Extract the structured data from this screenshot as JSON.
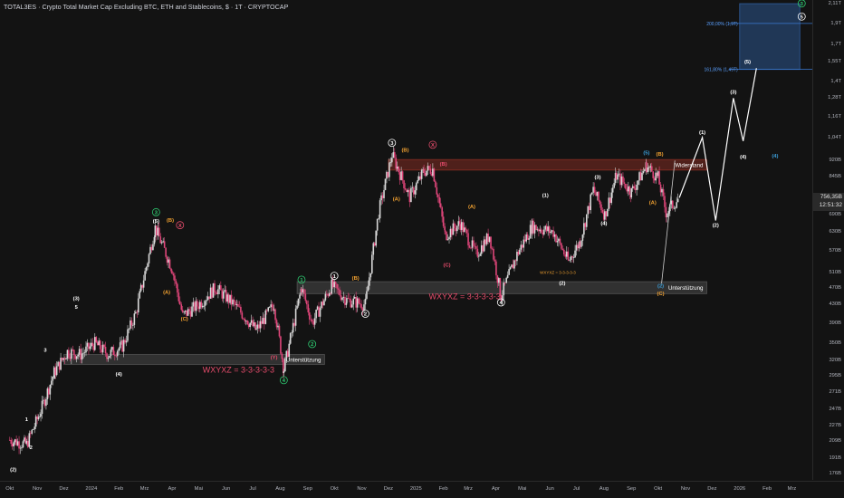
{
  "header": {
    "title": "TOTAL3ES · Crypto Total Market Cap Excluding BTC, ETH and Stablecoins, $ · 1T · CRYPTOCAP"
  },
  "price_tag": {
    "value": "756,35B",
    "countdown": "12:51:32"
  },
  "chart_data": {
    "type": "candlestick",
    "title": "TOTAL3ES · Crypto Total Market Cap Excluding BTC, ETH and Stablecoins, $ · 1T · CRYPTOCAP",
    "y_scale": "log",
    "ylim": [
      170,
      2110
    ],
    "y_ticks": [
      "2,11T",
      "1,9T",
      "1,7T",
      "1,55T",
      "1,4T",
      "1,28T",
      "1,16T",
      "1,04T",
      "920B",
      "845B",
      "756,35B",
      "690B",
      "630B",
      "570B",
      "510B",
      "470B",
      "430B",
      "390B",
      "350B",
      "320B",
      "295B",
      "271B",
      "247B",
      "227B",
      "209B",
      "191B",
      "176B"
    ],
    "y_tick_values": [
      2110,
      1900,
      1700,
      1550,
      1400,
      1280,
      1160,
      1040,
      920,
      845,
      756,
      690,
      630,
      570,
      510,
      470,
      430,
      390,
      350,
      320,
      295,
      271,
      247,
      227,
      209,
      191,
      176
    ],
    "x_ticks": [
      "Okt",
      "Nov",
      "Dez",
      "2024",
      "Feb",
      "Mrz",
      "Apr",
      "Mai",
      "Jun",
      "Jul",
      "Aug",
      "Sep",
      "Okt",
      "Nov",
      "Dez",
      "2025",
      "Feb",
      "Mrz",
      "Apr",
      "Mai",
      "Jun",
      "Jul",
      "Aug",
      "Sep",
      "Okt",
      "Nov",
      "Dez",
      "2026",
      "Feb",
      "Mrz"
    ],
    "price_path": [
      {
        "x": "2023-10-01",
        "y": 210
      },
      {
        "x": "2023-10-20",
        "y": 205
      },
      {
        "x": "2023-11-05",
        "y": 245
      },
      {
        "x": "2023-11-20",
        "y": 300
      },
      {
        "x": "2023-12-05",
        "y": 335
      },
      {
        "x": "2023-12-20",
        "y": 330
      },
      {
        "x": "2024-01-05",
        "y": 350
      },
      {
        "x": "2024-01-20",
        "y": 330
      },
      {
        "x": "2024-02-05",
        "y": 345
      },
      {
        "x": "2024-02-20",
        "y": 410
      },
      {
        "x": "2024-03-13",
        "y": 645
      },
      {
        "x": "2024-04-01",
        "y": 520
      },
      {
        "x": "2024-04-13",
        "y": 405
      },
      {
        "x": "2024-05-01",
        "y": 430
      },
      {
        "x": "2024-05-20",
        "y": 470
      },
      {
        "x": "2024-06-10",
        "y": 430
      },
      {
        "x": "2024-07-05",
        "y": 375
      },
      {
        "x": "2024-07-25",
        "y": 430
      },
      {
        "x": "2024-08-05",
        "y": 305
      },
      {
        "x": "2024-08-25",
        "y": 470
      },
      {
        "x": "2024-09-06",
        "y": 390
      },
      {
        "x": "2024-09-28",
        "y": 475
      },
      {
        "x": "2024-10-15",
        "y": 440
      },
      {
        "x": "2024-11-05",
        "y": 430
      },
      {
        "x": "2024-11-20",
        "y": 700
      },
      {
        "x": "2024-12-05",
        "y": 950
      },
      {
        "x": "2024-12-25",
        "y": 760
      },
      {
        "x": "2025-01-10",
        "y": 870
      },
      {
        "x": "2025-01-20",
        "y": 880
      },
      {
        "x": "2025-02-03",
        "y": 620
      },
      {
        "x": "2025-02-20",
        "y": 660
      },
      {
        "x": "2025-03-10",
        "y": 560
      },
      {
        "x": "2025-03-25",
        "y": 620
      },
      {
        "x": "2025-04-07",
        "y": 450
      },
      {
        "x": "2025-04-25",
        "y": 560
      },
      {
        "x": "2025-05-12",
        "y": 650
      },
      {
        "x": "2025-06-05",
        "y": 630
      },
      {
        "x": "2025-06-22",
        "y": 540
      },
      {
        "x": "2025-07-05",
        "y": 600
      },
      {
        "x": "2025-07-20",
        "y": 790
      },
      {
        "x": "2025-08-02",
        "y": 690
      },
      {
        "x": "2025-08-15",
        "y": 850
      },
      {
        "x": "2025-09-01",
        "y": 780
      },
      {
        "x": "2025-09-18",
        "y": 895
      },
      {
        "x": "2025-10-01",
        "y": 840
      },
      {
        "x": "2025-10-10",
        "y": 700
      },
      {
        "x": "2025-10-25",
        "y": 756
      }
    ],
    "projection": [
      {
        "x": "2025-10-25",
        "y": 756
      },
      {
        "x": "2025-11-20",
        "y": 1040
      },
      {
        "x": "2025-12-05",
        "y": 670
      },
      {
        "x": "2025-12-25",
        "y": 1280
      },
      {
        "x": "2026-01-05",
        "y": 1020
      },
      {
        "x": "2026-01-20",
        "y": 1500
      },
      {
        "x": "2025-10-05",
        "y": 480
      },
      {
        "x": "2025-10-20",
        "y": 920
      }
    ],
    "zones": [
      {
        "label": "Unterstützung",
        "from_x": "2023-12-01",
        "to_x": "2024-09-20",
        "y_low": 313,
        "y_high": 330,
        "color": "#6b6b6b"
      },
      {
        "label": "Unterstützung",
        "from_x": "2024-08-20",
        "to_x": "2025-11-25",
        "y_low": 455,
        "y_high": 485,
        "color": "#6b6b6b"
      },
      {
        "label": "Widerstand",
        "from_x": "2024-12-01",
        "to_x": "2025-11-25",
        "y_low": 875,
        "y_high": 925,
        "color": "#c0392b"
      },
      {
        "label": "",
        "from_x": "2026-01-01",
        "to_x": "2026-03-10",
        "y_low": 1490,
        "y_high": 2110,
        "color": "#3a7bd5"
      }
    ],
    "fib_levels": [
      {
        "label": "200,00% (1,9T)",
        "value": 1900
      },
      {
        "label": "161,80% (1,49T)",
        "value": 1490
      }
    ],
    "annotations": [
      {
        "text": "WXYXZ = 3-3-3-3-3",
        "x": "2024-06-15",
        "y": 300,
        "color": "#e74c6c"
      },
      {
        "text": "WXYXZ = 3-3-3-3-3",
        "x": "2025-02-25",
        "y": 442,
        "color": "#e74c6c"
      },
      {
        "text": "WXYXZ = 3-3-3-3-3",
        "x": "2025-06-10",
        "y": 505,
        "color": "#f0a030"
      }
    ],
    "wave_labels": [
      {
        "t": "(2)",
        "x": "2023-10-05",
        "y": 178,
        "c": "#fff",
        "circ": false
      },
      {
        "t": "1",
        "x": "2023-10-20",
        "y": 232,
        "c": "#fff",
        "circ": false
      },
      {
        "t": "2",
        "x": "2023-10-25",
        "y": 200,
        "c": "#fff",
        "circ": false
      },
      {
        "t": "3",
        "x": "2023-11-10",
        "y": 335,
        "c": "#fff",
        "circ": false
      },
      {
        "t": "4",
        "x": "2023-11-20",
        "y": 290,
        "c": "#fff",
        "circ": false
      },
      {
        "t": "5",
        "x": "2023-12-15",
        "y": 420,
        "c": "#fff",
        "circ": false
      },
      {
        "t": "(3)",
        "x": "2023-12-15",
        "y": 440,
        "c": "#fff",
        "circ": false
      },
      {
        "t": "(4)",
        "x": "2024-02-01",
        "y": 295,
        "c": "#fff",
        "circ": false
      },
      {
        "t": "3",
        "x": "2024-03-14",
        "y": 693,
        "c": "#2ecc71",
        "circ": true
      },
      {
        "t": "(5)",
        "x": "2024-03-14",
        "y": 662,
        "c": "#fff",
        "circ": false
      },
      {
        "t": "(B)",
        "x": "2024-03-30",
        "y": 665,
        "c": "#f0a030",
        "circ": false
      },
      {
        "t": "(A)",
        "x": "2024-03-26",
        "y": 455,
        "c": "#f0a030",
        "circ": false
      },
      {
        "t": "(C)",
        "x": "2024-04-15",
        "y": 395,
        "c": "#f0a030",
        "circ": false
      },
      {
        "t": "X",
        "x": "2024-04-10",
        "y": 647,
        "c": "#e74c6c",
        "circ": true
      },
      {
        "t": "(Y)",
        "x": "2024-07-25",
        "y": 322,
        "c": "#e74c6c",
        "circ": false
      },
      {
        "t": "4",
        "x": "2024-08-05",
        "y": 285,
        "c": "#2ecc71",
        "circ": true
      },
      {
        "t": "1",
        "x": "2024-08-25",
        "y": 485,
        "c": "#2ecc71",
        "circ": true
      },
      {
        "t": "2",
        "x": "2024-09-06",
        "y": 345,
        "c": "#2ecc71",
        "circ": true
      },
      {
        "t": "1",
        "x": "2024-10-01",
        "y": 495,
        "c": "#fff",
        "circ": true
      },
      {
        "t": "(B)",
        "x": "2024-10-25",
        "y": 490,
        "c": "#f0a030",
        "circ": false
      },
      {
        "t": "2",
        "x": "2024-11-05",
        "y": 405,
        "c": "#fff",
        "circ": true
      },
      {
        "t": "3",
        "x": "2024-12-05",
        "y": 1000,
        "c": "#fff",
        "circ": true
      },
      {
        "t": "(B)",
        "x": "2024-12-20",
        "y": 965,
        "c": "#f0a030",
        "circ": false
      },
      {
        "t": "X",
        "x": "2025-01-20",
        "y": 990,
        "c": "#e74c6c",
        "circ": true
      },
      {
        "t": "(B)",
        "x": "2025-02-01",
        "y": 895,
        "c": "#e74c6c",
        "circ": false
      },
      {
        "t": "(A)",
        "x": "2024-12-10",
        "y": 745,
        "c": "#f0a030",
        "circ": false
      },
      {
        "t": "(A)",
        "x": "2025-03-05",
        "y": 715,
        "c": "#f0a030",
        "circ": false
      },
      {
        "t": "(C)",
        "x": "2025-02-05",
        "y": 525,
        "c": "#e74c6c",
        "circ": false
      },
      {
        "t": "4",
        "x": "2025-04-07",
        "y": 430,
        "c": "#fff",
        "circ": true
      },
      {
        "t": "(2)",
        "x": "2025-06-15",
        "y": 477,
        "c": "#fff",
        "circ": false
      },
      {
        "t": "(1)",
        "x": "2025-05-27",
        "y": 760,
        "c": "#fff",
        "circ": false
      },
      {
        "t": "(3)",
        "x": "2025-07-25",
        "y": 835,
        "c": "#fff",
        "circ": false
      },
      {
        "t": "(4)",
        "x": "2025-08-01",
        "y": 655,
        "c": "#fff",
        "circ": false
      },
      {
        "t": "(5)",
        "x": "2025-09-18",
        "y": 950,
        "c": "#3a9bd5",
        "circ": false
      },
      {
        "t": "(B)",
        "x": "2025-10-03",
        "y": 945,
        "c": "#f0a030",
        "circ": false
      },
      {
        "t": "(A)",
        "x": "2025-09-25",
        "y": 730,
        "c": "#f0a030",
        "circ": false
      },
      {
        "t": "(2)",
        "x": "2025-10-04",
        "y": 470,
        "c": "#3a9bd5",
        "circ": false
      },
      {
        "t": "(C)",
        "x": "2025-10-04",
        "y": 452,
        "c": "#f0a030",
        "circ": false
      },
      {
        "t": "(1)",
        "x": "2025-11-20",
        "y": 1060,
        "c": "#fff",
        "circ": false
      },
      {
        "t": "(2)",
        "x": "2025-12-05",
        "y": 648,
        "c": "#fff",
        "circ": false
      },
      {
        "t": "(3)",
        "x": "2025-12-25",
        "y": 1310,
        "c": "#fff",
        "circ": false
      },
      {
        "t": "(4)",
        "x": "2026-01-05",
        "y": 930,
        "c": "#fff",
        "circ": false
      },
      {
        "t": "(4)",
        "x": "2026-02-10",
        "y": 935,
        "c": "#3a9bd5",
        "circ": false
      },
      {
        "t": "(5)",
        "x": "2026-01-10",
        "y": 1540,
        "c": "#fff",
        "circ": false
      },
      {
        "t": "5",
        "x": "2026-03-12",
        "y": 1950,
        "c": "#fff",
        "circ": true
      },
      {
        "t": "3",
        "x": "2026-03-12",
        "y": 2090,
        "c": "#2ecc71",
        "circ": true
      }
    ]
  }
}
